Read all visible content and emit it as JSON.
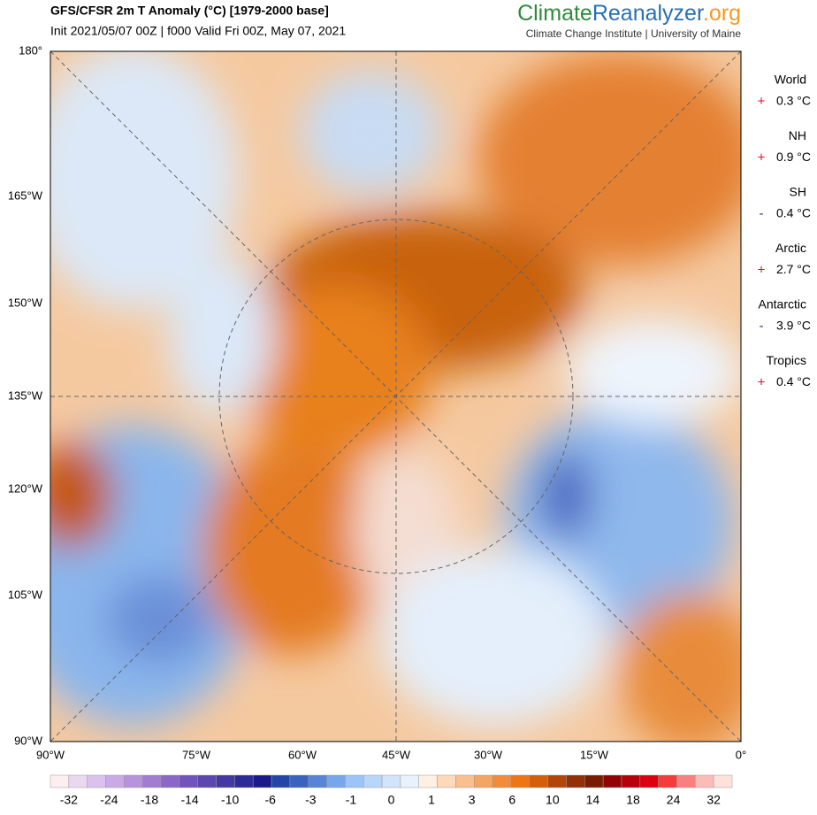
{
  "header": {
    "title": "GFS/CFSR 2m T Anomaly (°C) [1979-2000 base]",
    "subtitle": "Init 2021/05/07 00Z | f000 Valid Fri 00Z, May 07, 2021",
    "logo": {
      "part1": "Climate",
      "part2": "Reanalyzer",
      "part3": ".org"
    },
    "institution": "Climate Change Institute | University of Maine"
  },
  "map": {
    "left_labels": [
      "180°",
      "165°W",
      "150°W",
      "135°W",
      "120°W",
      "105°W",
      "90°W"
    ],
    "bottom_labels": [
      "90°W",
      "75°W",
      "60°W",
      "45°W",
      "30°W",
      "15°W",
      "0°"
    ]
  },
  "stats": [
    {
      "name": "World",
      "sign": "+",
      "value": "0.3 °C"
    },
    {
      "name": "NH",
      "sign": "+",
      "value": "0.9 °C"
    },
    {
      "name": "SH",
      "sign": "-",
      "value": "0.4 °C"
    },
    {
      "name": "Arctic",
      "sign": "+",
      "value": "2.7 °C"
    },
    {
      "name": "Antarctic",
      "sign": "-",
      "value": "3.9 °C"
    },
    {
      "name": "Tropics",
      "sign": "+",
      "value": "0.4 °C"
    }
  ],
  "colorbar": {
    "labels": [
      -32,
      -24,
      -18,
      -14,
      -10,
      -6,
      -3,
      -1,
      0,
      1,
      3,
      6,
      10,
      14,
      18,
      24,
      32
    ],
    "colors": [
      "#fdeef2",
      "#ead8f0",
      "#dbc2ec",
      "#c9a9e6",
      "#b792dd",
      "#a07cd3",
      "#8a66c8",
      "#7252bc",
      "#5c46b0",
      "#4538a3",
      "#2d2b98",
      "#1a1a8c",
      "#2546a8",
      "#3c62c0",
      "#5684d8",
      "#78a6ec",
      "#9cc4f6",
      "#b8d6f8",
      "#d2e4fa",
      "#e8f1fc",
      "#fef0e2",
      "#fcd9b8",
      "#f9bf8c",
      "#f6a560",
      "#f38c38",
      "#ef7512",
      "#d65e0b",
      "#b54408",
      "#933006",
      "#7a1c04",
      "#920404",
      "#b8000c",
      "#dc0010",
      "#f73a3a",
      "#fa8080",
      "#fbbcb8",
      "#fde2dc"
    ]
  }
}
